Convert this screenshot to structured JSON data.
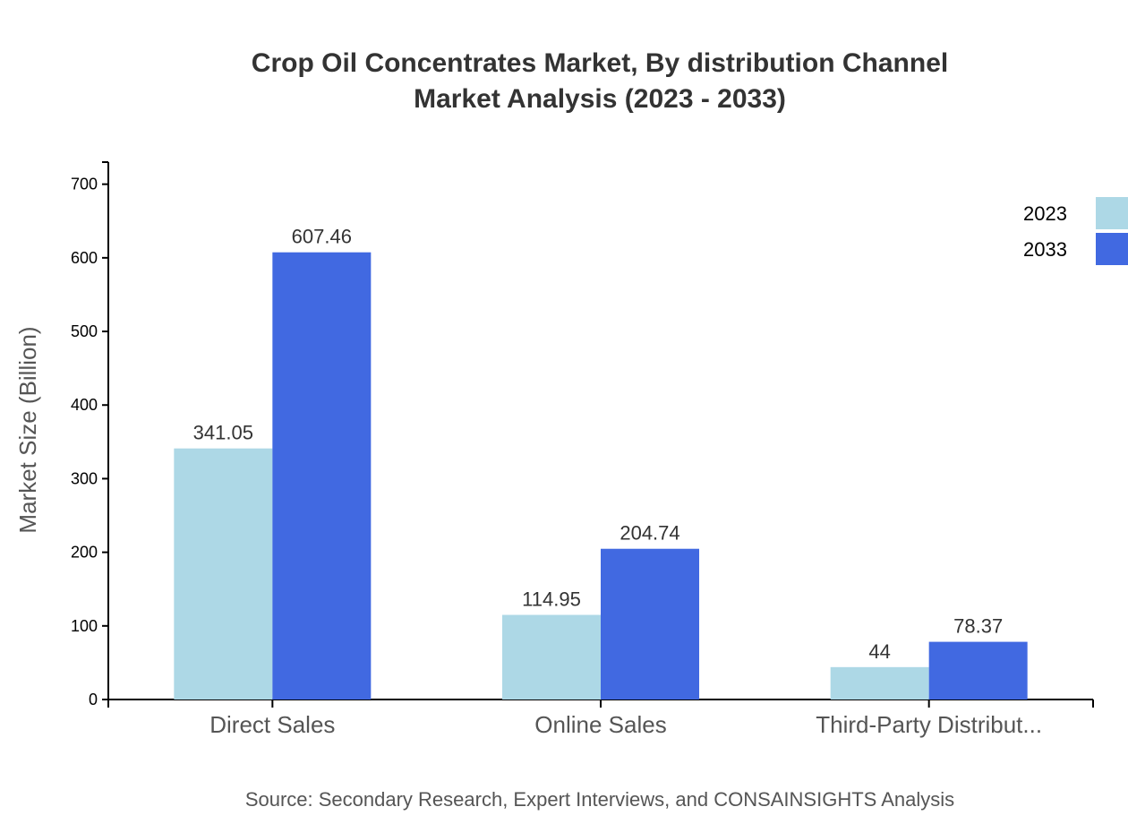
{
  "chart_data": {
    "type": "bar",
    "title_lines": [
      "Crop Oil Concentrates Market, By distribution Channel",
      "Market Analysis (2023 - 2033)"
    ],
    "ylabel": "Market Size (Billion)",
    "xlabel": "",
    "ylim": [
      0,
      730
    ],
    "yticks": [
      0,
      100,
      200,
      300,
      400,
      500,
      600,
      700
    ],
    "categories": [
      "Direct Sales",
      "Online Sales",
      "Third-Party Distribut..."
    ],
    "series": [
      {
        "name": "2023",
        "values": [
          341.05,
          114.95,
          44
        ],
        "color": "#add8e6"
      },
      {
        "name": "2033",
        "values": [
          607.46,
          204.74,
          78.37
        ],
        "color": "#4169e1"
      }
    ],
    "legend": "top-right",
    "grid": false,
    "source": "Source: Secondary Research, Expert Interviews, and CONSAINSIGHTS Analysis"
  }
}
